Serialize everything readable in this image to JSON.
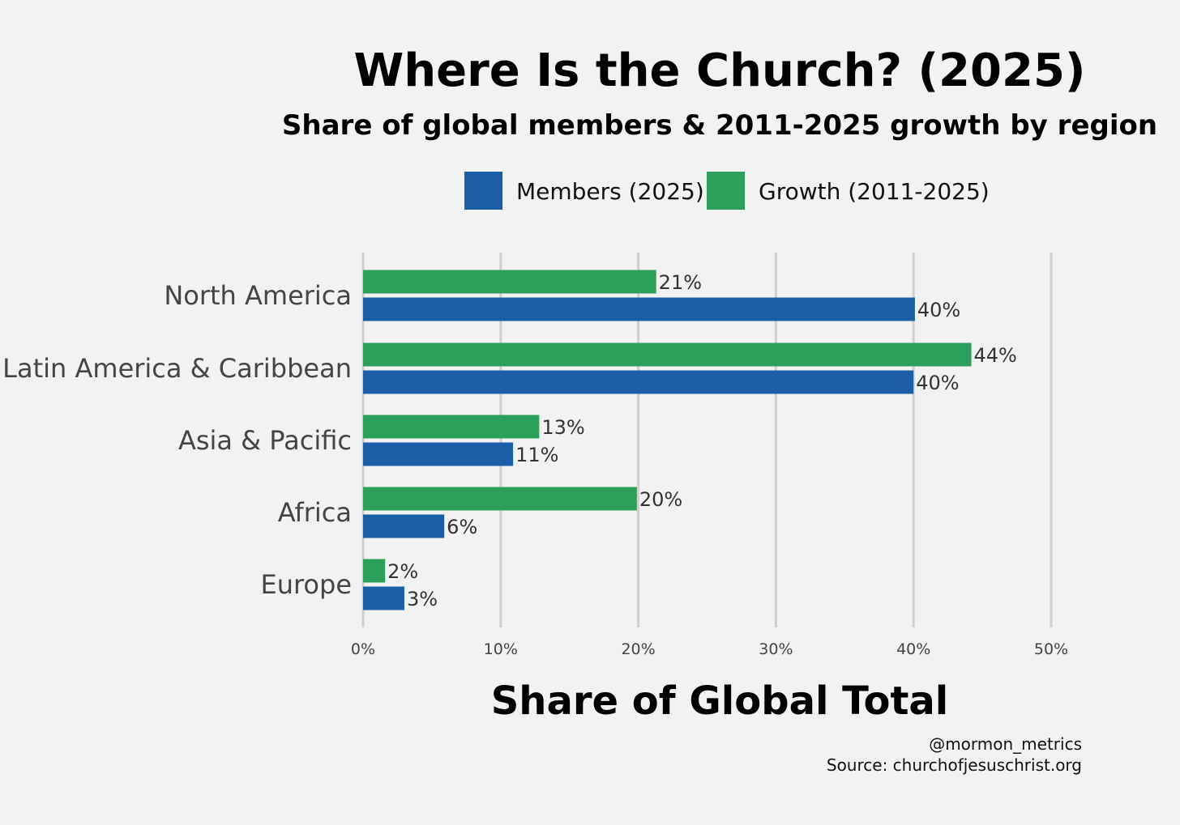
{
  "chart_data": {
    "type": "bar",
    "orientation": "horizontal",
    "title": "Where Is the Church? (2025)",
    "subtitle": "Share of global members & 2011-2025 growth by region",
    "categories": [
      "North America",
      "Latin America & Caribbean",
      "Asia & Pacific",
      "Africa",
      "Europe"
    ],
    "series": [
      {
        "name": "Growth (2011-2025)",
        "color": "#2ca05a",
        "values": [
          21.3,
          44.2,
          12.8,
          19.9,
          1.6
        ],
        "labels": [
          "21%",
          "44%",
          "13%",
          "20%",
          "2%"
        ]
      },
      {
        "name": "Members (2025)",
        "color": "#1b5ea8",
        "values": [
          40.1,
          40.0,
          10.9,
          5.9,
          3.0
        ],
        "labels": [
          "40%",
          "40%",
          "11%",
          "6%",
          "3%"
        ]
      }
    ],
    "legend": [
      {
        "label": "Members (2025)",
        "color": "#1b5ea8"
      },
      {
        "label": "Growth (2011-2025)",
        "color": "#2ca05a"
      }
    ],
    "legend_position": "top",
    "xlim": [
      0,
      50
    ],
    "xticks": [
      0,
      10,
      20,
      30,
      40,
      50
    ],
    "xtick_labels": [
      "0%",
      "10%",
      "20%",
      "30%",
      "40%",
      "50%"
    ],
    "xlabel": "Share of Global Total",
    "ylabel": "",
    "grid": true
  },
  "footer": {
    "handle": "@mormon_metrics",
    "source": "Source: churchofjesuschrist.org"
  }
}
